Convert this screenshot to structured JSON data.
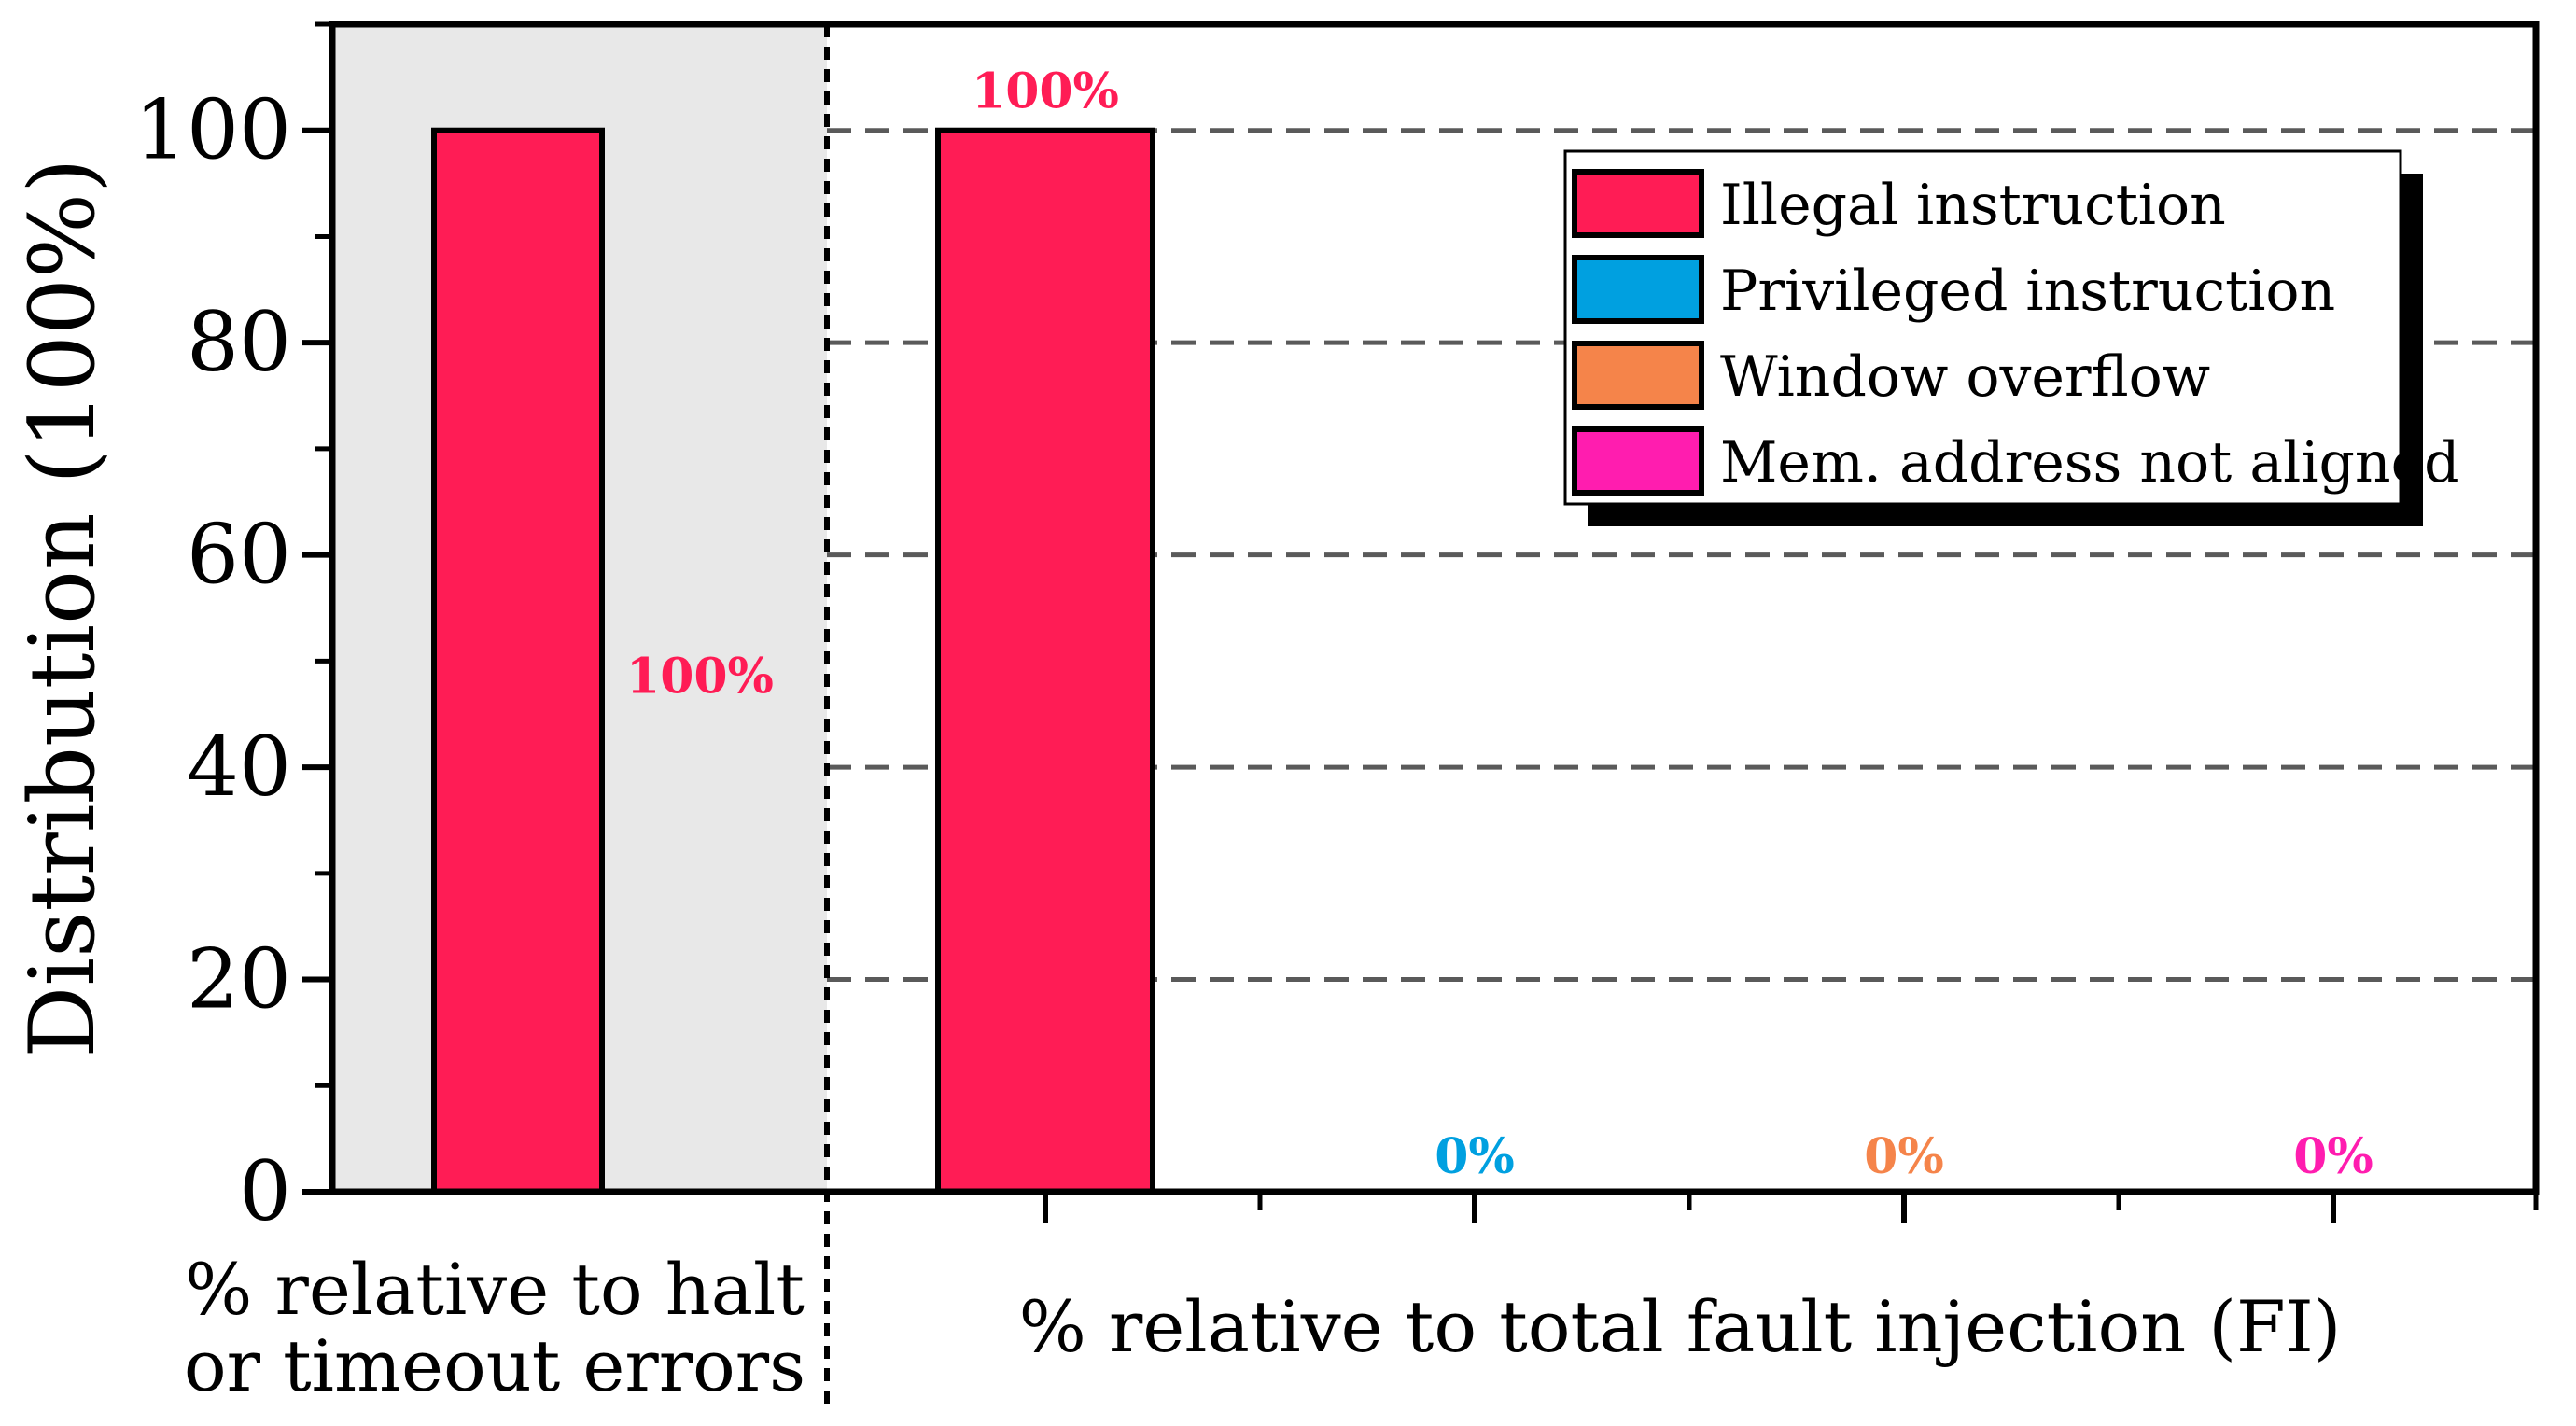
{
  "chart_data": {
    "type": "bar",
    "ylabel": "Distribution (100%)",
    "ylim": [
      0,
      110
    ],
    "yticks": [
      0,
      20,
      40,
      60,
      80,
      100
    ],
    "grid": "dashed horizontal",
    "legend_placement": "top-right",
    "panels": [
      {
        "xlabel": "% relative to halt or timeout errors",
        "xlabel_lines": [
          "% relative to halt",
          "or timeout errors"
        ],
        "shaded": true,
        "bars": [
          {
            "series": "Illegal instruction",
            "value": 100,
            "label": "100%"
          }
        ]
      },
      {
        "xlabel": "% relative to total fault injection (FI)",
        "shaded": false,
        "bars": [
          {
            "series": "Illegal instruction",
            "value": 100,
            "label": "100%"
          },
          {
            "series": "Privileged instruction",
            "value": 0,
            "label": "0%"
          },
          {
            "series": "Window overflow",
            "value": 0,
            "label": "0%"
          },
          {
            "series": "Mem. address not aligned",
            "value": 0,
            "label": "0%"
          }
        ]
      }
    ],
    "series": [
      {
        "name": "Illegal instruction",
        "color": "#FF1C55"
      },
      {
        "name": "Privileged instruction",
        "color": "#00A0E0"
      },
      {
        "name": "Window overflow",
        "color": "#F5844A"
      },
      {
        "name": "Mem. address not aligned",
        "color": "#FF1DAF"
      }
    ]
  }
}
